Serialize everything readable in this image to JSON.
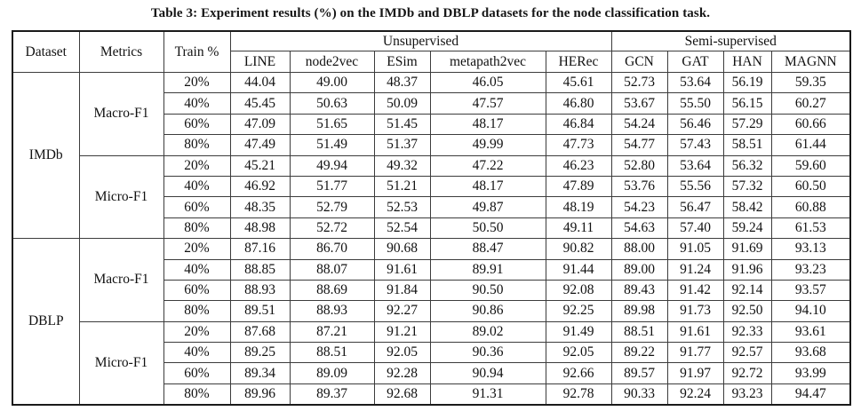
{
  "caption": "Table 3: Experiment results (%) on the IMDb and DBLP datasets for the node classification task.",
  "table": {
    "header": {
      "dataset_label": "Dataset",
      "metrics_label": "Metrics",
      "train_label": "Train %",
      "groups": [
        {
          "label": "Unsupervised",
          "methods": [
            "LINE",
            "node2vec",
            "ESim",
            "metapath2vec",
            "HERec"
          ]
        },
        {
          "label": "Semi-supervised",
          "methods": [
            "GCN",
            "GAT",
            "HAN",
            "MAGNN"
          ]
        }
      ]
    },
    "bold_method": "MAGNN",
    "sections": [
      {
        "dataset": "IMDb",
        "metric_groups": [
          {
            "metric": "Macro-F1",
            "rows": [
              {
                "train": "20%",
                "values": [
                  "44.04",
                  "49.00",
                  "48.37",
                  "46.05",
                  "45.61",
                  "52.73",
                  "53.64",
                  "56.19",
                  "59.35"
                ]
              },
              {
                "train": "40%",
                "values": [
                  "45.45",
                  "50.63",
                  "50.09",
                  "47.57",
                  "46.80",
                  "53.67",
                  "55.50",
                  "56.15",
                  "60.27"
                ]
              },
              {
                "train": "60%",
                "values": [
                  "47.09",
                  "51.65",
                  "51.45",
                  "48.17",
                  "46.84",
                  "54.24",
                  "56.46",
                  "57.29",
                  "60.66"
                ]
              },
              {
                "train": "80%",
                "values": [
                  "47.49",
                  "51.49",
                  "51.37",
                  "49.99",
                  "47.73",
                  "54.77",
                  "57.43",
                  "58.51",
                  "61.44"
                ]
              }
            ]
          },
          {
            "metric": "Micro-F1",
            "rows": [
              {
                "train": "20%",
                "values": [
                  "45.21",
                  "49.94",
                  "49.32",
                  "47.22",
                  "46.23",
                  "52.80",
                  "53.64",
                  "56.32",
                  "59.60"
                ]
              },
              {
                "train": "40%",
                "values": [
                  "46.92",
                  "51.77",
                  "51.21",
                  "48.17",
                  "47.89",
                  "53.76",
                  "55.56",
                  "57.32",
                  "60.50"
                ]
              },
              {
                "train": "60%",
                "values": [
                  "48.35",
                  "52.79",
                  "52.53",
                  "49.87",
                  "48.19",
                  "54.23",
                  "56.47",
                  "58.42",
                  "60.88"
                ]
              },
              {
                "train": "80%",
                "values": [
                  "48.98",
                  "52.72",
                  "52.54",
                  "50.50",
                  "49.11",
                  "54.63",
                  "57.40",
                  "59.24",
                  "61.53"
                ]
              }
            ]
          }
        ]
      },
      {
        "dataset": "DBLP",
        "metric_groups": [
          {
            "metric": "Macro-F1",
            "rows": [
              {
                "train": "20%",
                "values": [
                  "87.16",
                  "86.70",
                  "90.68",
                  "88.47",
                  "90.82",
                  "88.00",
                  "91.05",
                  "91.69",
                  "93.13"
                ]
              },
              {
                "train": "40%",
                "values": [
                  "88.85",
                  "88.07",
                  "91.61",
                  "89.91",
                  "91.44",
                  "89.00",
                  "91.24",
                  "91.96",
                  "93.23"
                ]
              },
              {
                "train": "60%",
                "values": [
                  "88.93",
                  "88.69",
                  "91.84",
                  "90.50",
                  "92.08",
                  "89.43",
                  "91.42",
                  "92.14",
                  "93.57"
                ]
              },
              {
                "train": "80%",
                "values": [
                  "89.51",
                  "88.93",
                  "92.27",
                  "90.86",
                  "92.25",
                  "89.98",
                  "91.73",
                  "92.50",
                  "94.10"
                ]
              }
            ]
          },
          {
            "metric": "Micro-F1",
            "rows": [
              {
                "train": "20%",
                "values": [
                  "87.68",
                  "87.21",
                  "91.21",
                  "89.02",
                  "91.49",
                  "88.51",
                  "91.61",
                  "92.33",
                  "93.61"
                ]
              },
              {
                "train": "40%",
                "values": [
                  "89.25",
                  "88.51",
                  "92.05",
                  "90.36",
                  "92.05",
                  "89.22",
                  "91.77",
                  "92.57",
                  "93.68"
                ]
              },
              {
                "train": "60%",
                "values": [
                  "89.34",
                  "89.09",
                  "92.28",
                  "90.94",
                  "92.66",
                  "89.57",
                  "91.97",
                  "92.72",
                  "93.99"
                ]
              },
              {
                "train": "80%",
                "values": [
                  "89.96",
                  "89.37",
                  "92.68",
                  "91.31",
                  "92.78",
                  "90.33",
                  "92.24",
                  "93.23",
                  "94.47"
                ]
              }
            ]
          }
        ]
      }
    ]
  }
}
